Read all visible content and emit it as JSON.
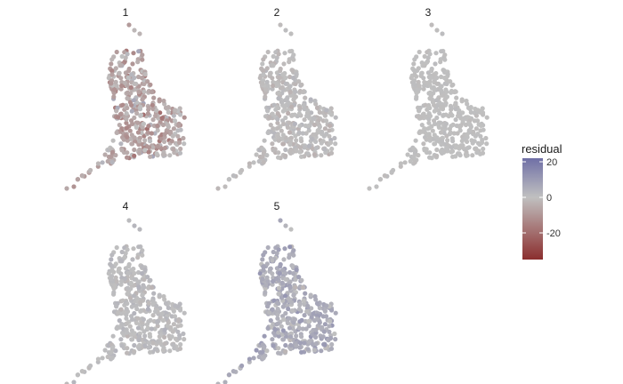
{
  "chart_data": {
    "type": "scatter",
    "facet_titles": [
      "1",
      "2",
      "3",
      "4",
      "5"
    ],
    "legend": {
      "title": "residual",
      "placement": "right",
      "tick_labels": [
        "20",
        "0",
        "-20"
      ],
      "tick_values": [
        20,
        0,
        -20
      ],
      "range": [
        -35,
        22
      ],
      "colors": {
        "low": "#8b2e2e",
        "mid": "#c0c0c0",
        "high": "#6f6fa6"
      }
    },
    "panels": [
      {
        "title": "1",
        "mean_residual": -6,
        "spread": 5
      },
      {
        "title": "2",
        "mean_residual": -0.5,
        "spread": 1.5
      },
      {
        "title": "3",
        "mean_residual": 0,
        "spread": 0.5
      },
      {
        "title": "4",
        "mean_residual": 0.8,
        "spread": 1.5
      },
      {
        "title": "5",
        "mean_residual": 5,
        "spread": 3
      }
    ],
    "grid": false,
    "axes_visible": false
  }
}
